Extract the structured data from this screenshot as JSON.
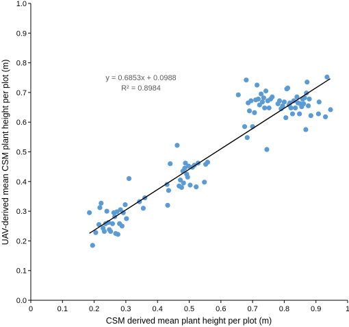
{
  "chart_data": {
    "type": "scatter",
    "title": "",
    "xlabel": "CSM derived mean plant height per plot (m)",
    "ylabel": "UAV-derived mean CSM plant height per plot (m)",
    "xlim": [
      0,
      1.0
    ],
    "ylim": [
      0,
      1.0
    ],
    "xticks": [
      "0",
      "0.1",
      "0.2",
      "0.3",
      "0.4",
      "0.5",
      "0.6",
      "0.7",
      "0.8",
      "0.9",
      "1"
    ],
    "yticks": [
      "0.0",
      "0.1",
      "0.2",
      "0.3",
      "0.4",
      "0.5",
      "0.6",
      "0.7",
      "0.8",
      "0.9",
      "1.0"
    ],
    "grid": false,
    "legend": "none",
    "point_color": "#5B9BD5",
    "line_color": "#000000",
    "equation": "y = 0.6853x + 0.0988",
    "r2": "R² = 0.8984",
    "trendline": {
      "slope": 0.6853,
      "intercept": 0.0988,
      "x_range": [
        0.185,
        0.945
      ]
    },
    "points": [
      [
        0.185,
        0.295
      ],
      [
        0.195,
        0.185
      ],
      [
        0.205,
        0.228
      ],
      [
        0.215,
        0.255
      ],
      [
        0.218,
        0.312
      ],
      [
        0.222,
        0.327
      ],
      [
        0.228,
        0.243
      ],
      [
        0.232,
        0.232
      ],
      [
        0.236,
        0.258
      ],
      [
        0.24,
        0.3
      ],
      [
        0.245,
        0.262
      ],
      [
        0.248,
        0.238
      ],
      [
        0.252,
        0.232
      ],
      [
        0.258,
        0.258
      ],
      [
        0.262,
        0.295
      ],
      [
        0.265,
        0.282
      ],
      [
        0.268,
        0.225
      ],
      [
        0.272,
        0.298
      ],
      [
        0.275,
        0.222
      ],
      [
        0.28,
        0.258
      ],
      [
        0.283,
        0.305
      ],
      [
        0.288,
        0.25
      ],
      [
        0.292,
        0.295
      ],
      [
        0.298,
        0.322
      ],
      [
        0.302,
        0.275
      ],
      [
        0.31,
        0.41
      ],
      [
        0.343,
        0.332
      ],
      [
        0.355,
        0.31
      ],
      [
        0.36,
        0.345
      ],
      [
        0.43,
        0.39
      ],
      [
        0.432,
        0.32
      ],
      [
        0.435,
        0.37
      ],
      [
        0.44,
        0.46
      ],
      [
        0.462,
        0.522
      ],
      [
        0.468,
        0.385
      ],
      [
        0.472,
        0.405
      ],
      [
        0.476,
        0.38
      ],
      [
        0.48,
        0.435
      ],
      [
        0.482,
        0.395
      ],
      [
        0.486,
        0.445
      ],
      [
        0.488,
        0.462
      ],
      [
        0.492,
        0.425
      ],
      [
        0.495,
        0.415
      ],
      [
        0.498,
        0.452
      ],
      [
        0.503,
        0.388
      ],
      [
        0.51,
        0.448
      ],
      [
        0.516,
        0.455
      ],
      [
        0.522,
        0.382
      ],
      [
        0.528,
        0.462
      ],
      [
        0.548,
        0.398
      ],
      [
        0.552,
        0.458
      ],
      [
        0.558,
        0.465
      ],
      [
        0.655,
        0.692
      ],
      [
        0.675,
        0.585
      ],
      [
        0.68,
        0.742
      ],
      [
        0.683,
        0.548
      ],
      [
        0.686,
        0.665
      ],
      [
        0.69,
        0.638
      ],
      [
        0.695,
        0.672
      ],
      [
        0.7,
        0.585
      ],
      [
        0.706,
        0.632
      ],
      [
        0.71,
        0.675
      ],
      [
        0.714,
        0.725
      ],
      [
        0.718,
        0.678
      ],
      [
        0.722,
        0.658
      ],
      [
        0.727,
        0.695
      ],
      [
        0.731,
        0.668
      ],
      [
        0.735,
        0.682
      ],
      [
        0.738,
        0.648
      ],
      [
        0.742,
        0.705
      ],
      [
        0.745,
        0.508
      ],
      [
        0.748,
        0.672
      ],
      [
        0.752,
        0.648
      ],
      [
        0.757,
        0.678
      ],
      [
        0.762,
        0.685
      ],
      [
        0.78,
        0.662
      ],
      [
        0.785,
        0.672
      ],
      [
        0.79,
        0.645
      ],
      [
        0.795,
        0.655
      ],
      [
        0.8,
        0.668
      ],
      [
        0.805,
        0.615
      ],
      [
        0.808,
        0.712
      ],
      [
        0.811,
        0.715
      ],
      [
        0.815,
        0.658
      ],
      [
        0.818,
        0.665
      ],
      [
        0.821,
        0.648
      ],
      [
        0.826,
        0.628
      ],
      [
        0.83,
        0.672
      ],
      [
        0.835,
        0.648
      ],
      [
        0.84,
        0.685
      ],
      [
        0.843,
        0.665
      ],
      [
        0.848,
        0.628
      ],
      [
        0.851,
        0.662
      ],
      [
        0.855,
        0.652
      ],
      [
        0.858,
        0.678
      ],
      [
        0.861,
        0.662
      ],
      [
        0.864,
        0.682
      ],
      [
        0.868,
        0.575
      ],
      [
        0.87,
        0.698
      ],
      [
        0.872,
        0.735
      ],
      [
        0.876,
        0.655
      ],
      [
        0.879,
        0.678
      ],
      [
        0.884,
        0.622
      ],
      [
        0.908,
        0.628
      ],
      [
        0.91,
        0.668
      ],
      [
        0.935,
        0.752
      ],
      [
        0.93,
        0.618
      ],
      [
        0.946,
        0.642
      ]
    ]
  }
}
